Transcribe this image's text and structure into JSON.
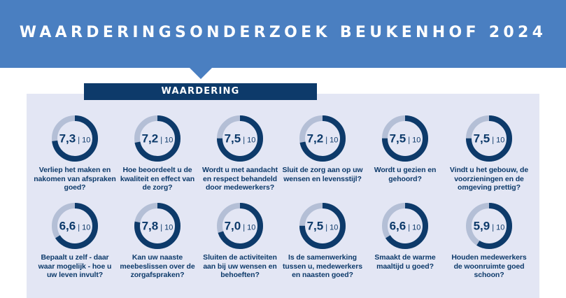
{
  "header": {
    "title": "WAARDERINGSONDERZOEK BEUKENHOF 2024"
  },
  "section": {
    "label": "WAARDERING"
  },
  "colors": {
    "banner": "#4a7fc1",
    "dark_blue": "#0d3a6a",
    "ring_track": "#b4bfd6",
    "panel": "#e3e6f4"
  },
  "chart_data": {
    "type": "donut",
    "max": 10,
    "scale_label": "10",
    "items": [
      {
        "score": 7.3,
        "score_label": "7,3",
        "question": "Verliep het maken en nakomen van afspraken goed?"
      },
      {
        "score": 7.2,
        "score_label": "7,2",
        "question": "Hoe beoordeelt u de kwaliteit en effect van de zorg?"
      },
      {
        "score": 7.5,
        "score_label": "7,5",
        "question": "Wordt u met aandacht en respect behandeld door medewerkers?"
      },
      {
        "score": 7.2,
        "score_label": "7,2",
        "question": "Sluit de zorg aan op uw wensen en levensstijl?"
      },
      {
        "score": 7.5,
        "score_label": "7,5",
        "question": "Wordt u gezien en gehoord?"
      },
      {
        "score": 7.5,
        "score_label": "7,5",
        "question": "Vindt u het gebouw, de voorzieningen en de omgeving prettig?"
      },
      {
        "score": 6.6,
        "score_label": "6,6",
        "question": "Bepaalt u zelf - daar waar mogelijk - hoe u uw leven invult?"
      },
      {
        "score": 7.8,
        "score_label": "7,8",
        "question": "Kan uw naaste meebeslissen over de zorgafspraken?"
      },
      {
        "score": 7.0,
        "score_label": "7,0",
        "question": "Sluiten de activiteiten aan bij uw wensen en behoeften?"
      },
      {
        "score": 7.5,
        "score_label": "7,5",
        "question": "Is de samenwerking tussen u, medewerkers en naasten goed?"
      },
      {
        "score": 6.6,
        "score_label": "6,6",
        "question": "Smaakt de warme maaltijd u goed?"
      },
      {
        "score": 5.9,
        "score_label": "5,9",
        "question": "Houden medewerkers de woonruimte goed schoon?"
      }
    ]
  }
}
